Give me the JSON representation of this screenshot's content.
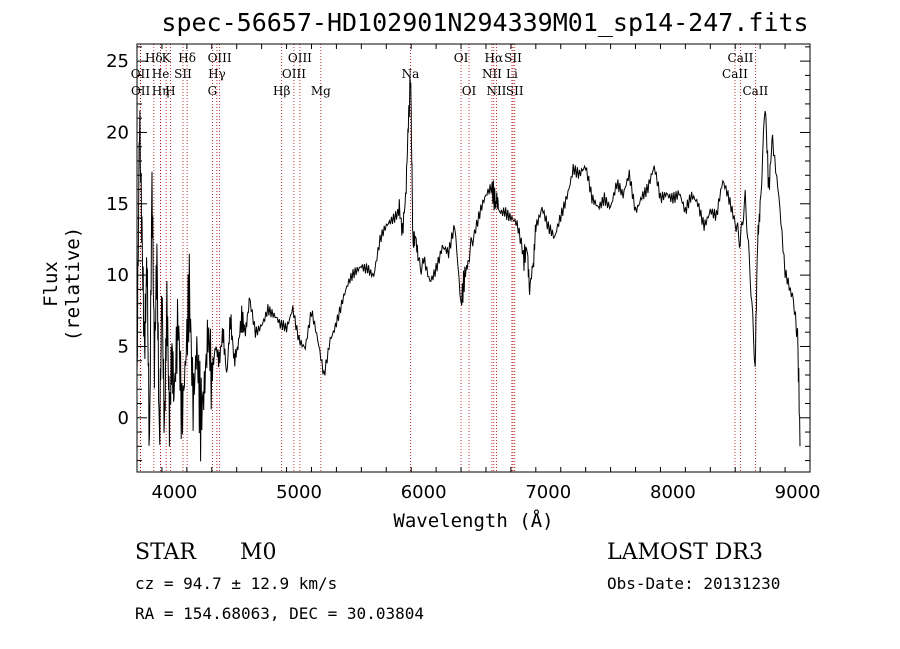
{
  "chart_data": {
    "type": "line",
    "title": "spec-56657-HD102901N294339M01_sp14-247.fits",
    "xlabel": "Wavelength (Å)",
    "ylabel": "Flux (relative)",
    "xlim": [
      3700,
      9100
    ],
    "ylim": [
      -3.8,
      26.2
    ],
    "xticks": [
      4000,
      5000,
      6000,
      7000,
      8000,
      9000
    ],
    "yticks": [
      0,
      5,
      10,
      15,
      20,
      25
    ],
    "series": [
      {
        "name": "spectrum",
        "x": [
          3700,
          3720,
          3740,
          3760,
          3780,
          3800,
          3820,
          3840,
          3860,
          3880,
          3900,
          3920,
          3940,
          3960,
          3980,
          4000,
          4030,
          4060,
          4090,
          4120,
          4150,
          4180,
          4210,
          4240,
          4270,
          4300,
          4330,
          4360,
          4390,
          4420,
          4450,
          4480,
          4510,
          4540,
          4570,
          4600,
          4650,
          4700,
          4750,
          4800,
          4850,
          4900,
          4950,
          5000,
          5050,
          5100,
          5150,
          5200,
          5250,
          5300,
          5350,
          5400,
          5450,
          5500,
          5550,
          5600,
          5650,
          5700,
          5750,
          5800,
          5830,
          5860,
          5880,
          5895,
          5905,
          5915,
          5930,
          5960,
          6000,
          6050,
          6100,
          6150,
          6200,
          6250,
          6300,
          6330,
          6360,
          6400,
          6450,
          6500,
          6550,
          6580,
          6600,
          6650,
          6700,
          6750,
          6800,
          6830,
          6850,
          6880,
          6900,
          6950,
          7000,
          7050,
          7100,
          7150,
          7200,
          7250,
          7300,
          7350,
          7400,
          7450,
          7500,
          7550,
          7600,
          7650,
          7700,
          7750,
          7800,
          7850,
          7900,
          7950,
          8000,
          8050,
          8100,
          8150,
          8200,
          8250,
          8300,
          8350,
          8400,
          8450,
          8500,
          8540,
          8580,
          8620,
          8660,
          8680,
          8700,
          8740,
          8770,
          8800,
          8850,
          8900,
          8950,
          9000,
          9020
        ],
        "values": [
          3,
          22,
          14,
          6,
          12,
          -2,
          16,
          3,
          10,
          -3,
          8,
          -1,
          9,
          1,
          6,
          2,
          7,
          0,
          4,
          9,
          1,
          5,
          0,
          2,
          6,
          3,
          5,
          4,
          6,
          3,
          7,
          4,
          5,
          7,
          6,
          8,
          6,
          7,
          8,
          7,
          6,
          6,
          8,
          6,
          5,
          7,
          5,
          3,
          6,
          7,
          8,
          9,
          10,
          11,
          11,
          10,
          12,
          13,
          14,
          15,
          13,
          16,
          21,
          24,
          18,
          12,
          13,
          11,
          11,
          10,
          11,
          12,
          11,
          13,
          8,
          10,
          11,
          13,
          14,
          15,
          16,
          15,
          15,
          15,
          14,
          13,
          11,
          12,
          9,
          11,
          14,
          15,
          13,
          12,
          14,
          16,
          18,
          17,
          17,
          15,
          15,
          16,
          15,
          16,
          15,
          17,
          15,
          16,
          16,
          17,
          15,
          16,
          16,
          16,
          14,
          15,
          15,
          14,
          15,
          14,
          16,
          15,
          14,
          12,
          15,
          10,
          4,
          13,
          15,
          22,
          16,
          20,
          16,
          10,
          8,
          5,
          -2
        ]
      }
    ],
    "lines": [
      {
        "label": "Hδ",
        "x": 3835,
        "row": 1
      },
      {
        "label": "OII",
        "x": 3727,
        "row": 2
      },
      {
        "label": "OII",
        "x": 3729,
        "row": 3
      },
      {
        "label": "He",
        "x": 3889,
        "row": 2
      },
      {
        "label": "Hη",
        "x": 3889,
        "row": 3
      },
      {
        "label": "K",
        "x": 3934,
        "row": 1
      },
      {
        "label": "SII",
        "x": 4069,
        "row": 2
      },
      {
        "label": "H",
        "x": 3968,
        "row": 3
      },
      {
        "label": "Hδ",
        "x": 4102,
        "row": 1
      },
      {
        "label": "OIII",
        "x": 4363,
        "row": 1
      },
      {
        "label": "Hγ",
        "x": 4341,
        "row": 2
      },
      {
        "label": "G",
        "x": 4305,
        "row": 3
      },
      {
        "label": "OIII",
        "x": 5007,
        "row": 1
      },
      {
        "label": "OIII",
        "x": 4959,
        "row": 2
      },
      {
        "label": "Hβ",
        "x": 4861,
        "row": 3
      },
      {
        "label": "Mg",
        "x": 5175,
        "row": 3
      },
      {
        "label": "Na",
        "x": 5894,
        "row": 2
      },
      {
        "label": "OI",
        "x": 6300,
        "row": 1
      },
      {
        "label": "OI",
        "x": 6364,
        "row": 3
      },
      {
        "label": "Hα",
        "x": 6563,
        "row": 1
      },
      {
        "label": "NII",
        "x": 6548,
        "row": 2
      },
      {
        "label": "NII",
        "x": 6584,
        "row": 3
      },
      {
        "label": "SII",
        "x": 6717,
        "row": 1
      },
      {
        "label": "Li",
        "x": 6708,
        "row": 2
      },
      {
        "label": "SII",
        "x": 6731,
        "row": 3
      },
      {
        "label": "CaII",
        "x": 8542,
        "row": 1
      },
      {
        "label": "CaII",
        "x": 8498,
        "row": 2
      },
      {
        "label": "CaII",
        "x": 8662,
        "row": 3
      }
    ]
  },
  "info": {
    "class": "STAR",
    "subclass": "M0",
    "survey": "LAMOST DR3",
    "cz": "cz = 94.7 ± 12.9 km/s",
    "obsdate": "Obs-Date: 20131230",
    "radec": "RA = 154.68063, DEC =  30.03804"
  }
}
